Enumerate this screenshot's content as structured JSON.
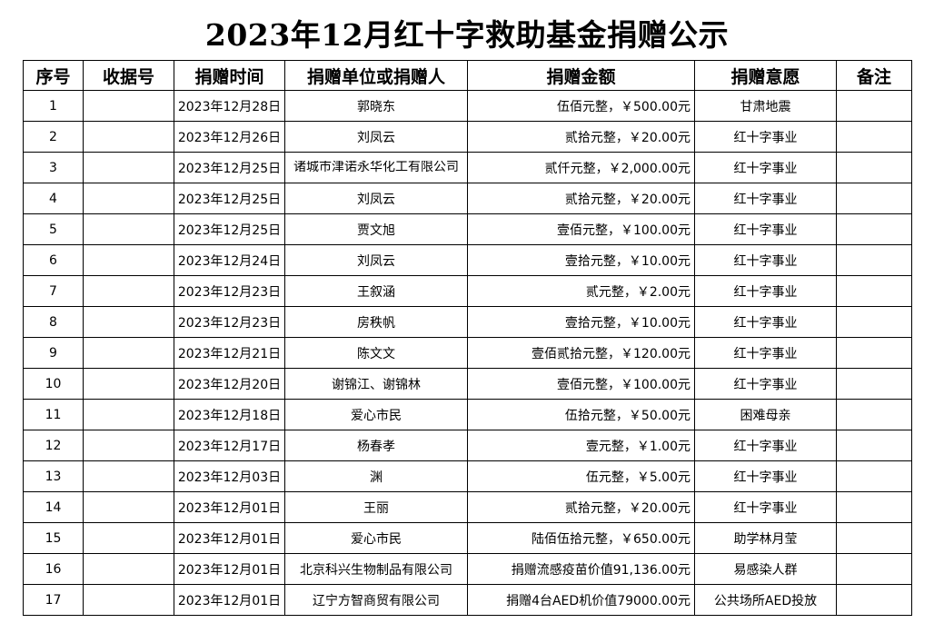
{
  "title": "2023年12月红十字救助基金捐赠公示",
  "headers": [
    "序号",
    "收据号",
    "捐赠时间",
    "捐赠单位或捐赠人",
    "捐赠金额",
    "捐赠意愿",
    "备注"
  ],
  "rows": [
    {
      "no": "1",
      "receipt": "",
      "date": "2023年12月28日",
      "donor": "郭晓东",
      "amount": "伍佰元整，￥500.00元",
      "purpose": "甘肃地震",
      "note": ""
    },
    {
      "no": "2",
      "receipt": "",
      "date": "2023年12月26日",
      "donor": "刘凤云",
      "amount": "贰拾元整，￥20.00元",
      "purpose": "红十字事业",
      "note": ""
    },
    {
      "no": "3",
      "receipt": "",
      "date": "2023年12月25日",
      "donor": "诸城市津诺永华化工有限公司",
      "amount": "贰仟元整，￥2,000.00元",
      "purpose": "红十字事业",
      "note": ""
    },
    {
      "no": "4",
      "receipt": "",
      "date": "2023年12月25日",
      "donor": "刘凤云",
      "amount": "贰拾元整，￥20.00元",
      "purpose": "红十字事业",
      "note": ""
    },
    {
      "no": "5",
      "receipt": "",
      "date": "2023年12月25日",
      "donor": "贾文旭",
      "amount": "壹佰元整，￥100.00元",
      "purpose": "红十字事业",
      "note": ""
    },
    {
      "no": "6",
      "receipt": "",
      "date": "2023年12月24日",
      "donor": "刘凤云",
      "amount": "壹拾元整，￥10.00元",
      "purpose": "红十字事业",
      "note": ""
    },
    {
      "no": "7",
      "receipt": "",
      "date": "2023年12月23日",
      "donor": "王叙涵",
      "amount": "贰元整，￥2.00元",
      "purpose": "红十字事业",
      "note": ""
    },
    {
      "no": "8",
      "receipt": "",
      "date": "2023年12月23日",
      "donor": "房秩帆",
      "amount": "壹拾元整，￥10.00元",
      "purpose": "红十字事业",
      "note": ""
    },
    {
      "no": "9",
      "receipt": "",
      "date": "2023年12月21日",
      "donor": "陈文文",
      "amount": "壹佰贰拾元整，￥120.00元",
      "purpose": "红十字事业",
      "note": ""
    },
    {
      "no": "10",
      "receipt": "",
      "date": "2023年12月20日",
      "donor": "谢锦江、谢锦林",
      "amount": "壹佰元整，￥100.00元",
      "purpose": "红十字事业",
      "note": ""
    },
    {
      "no": "11",
      "receipt": "",
      "date": "2023年12月18日",
      "donor": "爱心市民",
      "amount": "伍拾元整，￥50.00元",
      "purpose": "困难母亲",
      "note": ""
    },
    {
      "no": "12",
      "receipt": "",
      "date": "2023年12月17日",
      "donor": "杨春孝",
      "amount": "壹元整，￥1.00元",
      "purpose": "红十字事业",
      "note": ""
    },
    {
      "no": "13",
      "receipt": "",
      "date": "2023年12月03日",
      "donor": "渊",
      "amount": "伍元整，￥5.00元",
      "purpose": "红十字事业",
      "note": ""
    },
    {
      "no": "14",
      "receipt": "",
      "date": "2023年12月01日",
      "donor": "王丽",
      "amount": "贰拾元整，￥20.00元",
      "purpose": "红十字事业",
      "note": ""
    },
    {
      "no": "15",
      "receipt": "",
      "date": "2023年12月01日",
      "donor": "爱心市民",
      "amount": "陆佰伍拾元整，￥650.00元",
      "purpose": "助学林月莹",
      "note": ""
    },
    {
      "no": "16",
      "receipt": "",
      "date": "2023年12月01日",
      "donor": "北京科兴生物制品有限公司",
      "amount": "捐赠流感疫苗价值91,136.00元",
      "purpose": "易感染人群",
      "note": ""
    },
    {
      "no": "17",
      "receipt": "",
      "date": "2023年12月01日",
      "donor": "辽宁方智商贸有限公司",
      "amount": "捐赠4台AED机价值79000.00元",
      "purpose": "公共场所AED投放",
      "note": ""
    }
  ]
}
